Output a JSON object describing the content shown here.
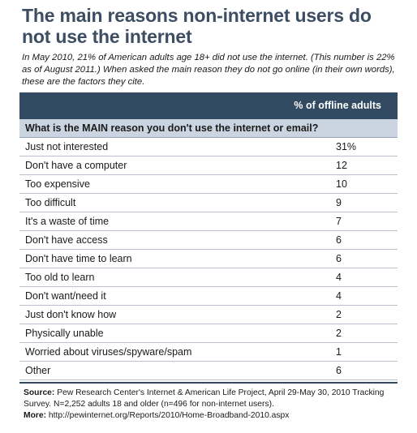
{
  "title": "The main reasons non-internet users do not use the internet",
  "subtitle": "In May 2010, 21% of American adults age 18+ did not use the internet. (This number is 22% as of August 2011.) When asked the main reason they do not go online (in their own words), these are the factors they cite.",
  "column_header": "% of offline adults",
  "question": "What is the MAIN reason you don't use the internet or email?",
  "chart_data": {
    "type": "table",
    "title": "The main reasons non-internet users do not use the internet",
    "column": "% of offline adults",
    "rows": [
      {
        "label": "Just not interested",
        "value": "31%"
      },
      {
        "label": "Don't have a computer",
        "value": "12"
      },
      {
        "label": "Too expensive",
        "value": "10"
      },
      {
        "label": "Too difficult",
        "value": "9"
      },
      {
        "label": "It's a waste of time",
        "value": "7"
      },
      {
        "label": "Don't have access",
        "value": "6"
      },
      {
        "label": "Don't have time to learn",
        "value": "6"
      },
      {
        "label": "Too old to learn",
        "value": "4"
      },
      {
        "label": "Don't want/need it",
        "value": "4"
      },
      {
        "label": "Just don't know how",
        "value": "2"
      },
      {
        "label": "Physically unable",
        "value": "2"
      },
      {
        "label": "Worried about viruses/spyware/spam",
        "value": "1"
      },
      {
        "label": "Other",
        "value": "6"
      }
    ]
  },
  "source": {
    "source_label": "Source:",
    "source_text": "Pew Research Center's Internet & American Life Project, April 29-May 30, 2010 Tracking Survey. N=2,252 adults 18 and older (n=496 for non-internet users).",
    "more_label": "More:",
    "more_text": "http://pewinternet.org/Reports/2010/Home-Broadband-2010.aspx"
  },
  "colors": {
    "title": "#3d4d63",
    "header_band": "#334a63",
    "question_band": "#cbd5e2"
  }
}
